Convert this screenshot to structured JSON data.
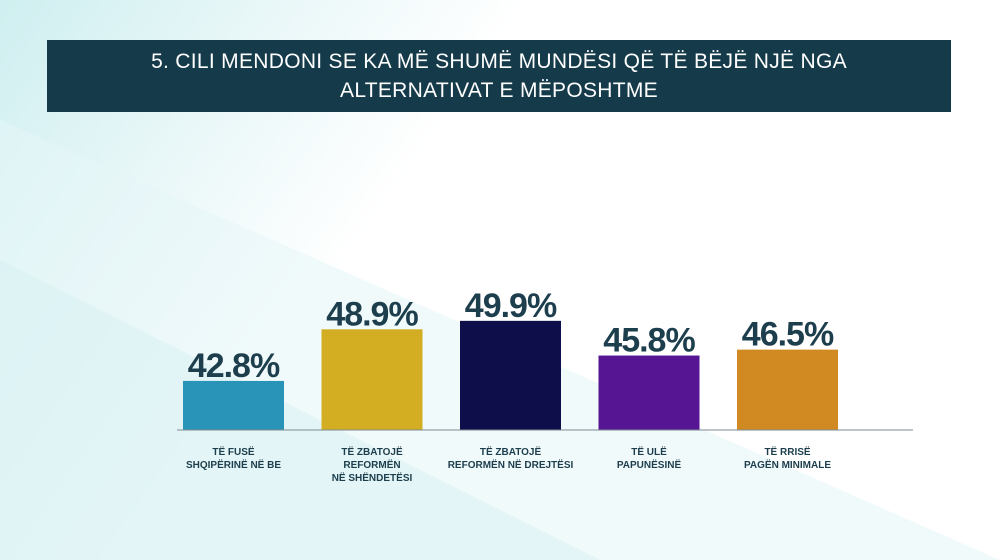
{
  "header": {
    "title": "5.  CILI MENDONI SE KA MË SHUMË MUNDËSI QË TË BËJË NJË NGA ALTERNATIVAT E MËPOSHTME"
  },
  "chart_data": {
    "type": "bar",
    "categories": [
      [
        "TË FUSË",
        "SHQIPËRINË NË BE"
      ],
      [
        "TË ZBATOJË",
        "REFORMËN",
        "NË SHËNDETËSI"
      ],
      [
        "TË ZBATOJË",
        "REFORMËN NË DREJTËSI"
      ],
      [
        "TË ULË",
        "PAPUNËSINË"
      ],
      [
        "TË RRISË",
        "PAGËN MINIMALE"
      ]
    ],
    "values": [
      42.8,
      48.9,
      49.9,
      45.8,
      46.5
    ],
    "value_labels": [
      "42.8%",
      "48.9%",
      "49.9%",
      "45.8%",
      "46.5%"
    ],
    "colors": [
      "#2a93b8",
      "#d4ae22",
      "#0e0e4a",
      "#561592",
      "#d18a22"
    ],
    "ylim": [
      37,
      50
    ],
    "grid": false,
    "legend": "none"
  }
}
